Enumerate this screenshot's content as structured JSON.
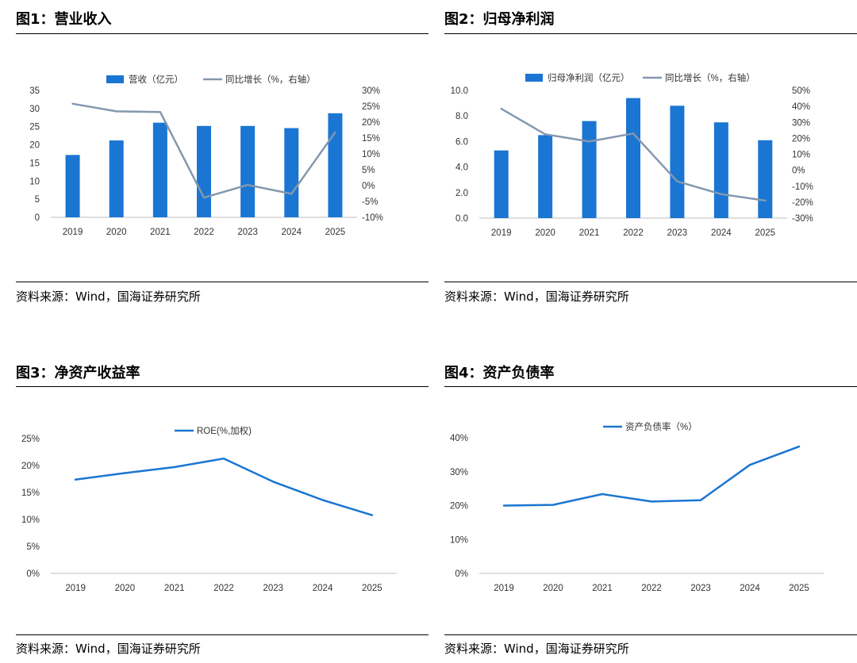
{
  "panels": [
    {
      "title": "图1：营业收入",
      "source": "资料来源：Wind，国海证券研究所",
      "chart_data": {
        "type": "bar",
        "categories": [
          "2019",
          "2020",
          "2021",
          "2022",
          "2023",
          "2024",
          "2025"
        ],
        "series": [
          {
            "name": "营收（亿元）",
            "type": "bar",
            "axis": "left",
            "color": "#1a76d2",
            "values": [
              17.2,
              21.2,
              26.1,
              25.2,
              25.2,
              24.6,
              28.7
            ]
          },
          {
            "name": "同比增长（%，右轴）",
            "type": "line",
            "axis": "right",
            "color": "#8497b0",
            "values": [
              25.8,
              23.4,
              23.2,
              -3.8,
              0.2,
              -2.6,
              16.8
            ]
          }
        ],
        "left_axis": {
          "min": 0,
          "max": 35,
          "step": 5,
          "ticks": [
            "0",
            "5",
            "10",
            "15",
            "20",
            "25",
            "30",
            "35"
          ]
        },
        "right_axis": {
          "min": -10,
          "max": 30,
          "step": 5,
          "ticks": [
            "-10%",
            "-5%",
            "0%",
            "5%",
            "10%",
            "15%",
            "20%",
            "25%",
            "30%"
          ]
        },
        "legend": "top"
      }
    },
    {
      "title": "图2：归母净利润",
      "source": "资料来源：Wind，国海证券研究所",
      "chart_data": {
        "type": "bar",
        "categories": [
          "2019",
          "2020",
          "2021",
          "2022",
          "2023",
          "2024",
          "2025"
        ],
        "series": [
          {
            "name": "归母净利润（亿元）",
            "type": "bar",
            "axis": "left",
            "color": "#1a76d2",
            "values": [
              5.3,
              6.5,
              7.6,
              9.4,
              8.8,
              7.5,
              6.1
            ]
          },
          {
            "name": "同比增长（%，右轴）",
            "type": "line",
            "axis": "right",
            "color": "#8497b0",
            "values": [
              38.5,
              22.5,
              18.0,
              23.0,
              -7.0,
              -15.0,
              -19.0
            ]
          }
        ],
        "left_axis": {
          "min": 0,
          "max": 10,
          "step": 2,
          "ticks": [
            "0.0",
            "2.0",
            "4.0",
            "6.0",
            "8.0",
            "10.0"
          ]
        },
        "right_axis": {
          "min": -30,
          "max": 50,
          "step": 10,
          "ticks": [
            "-30%",
            "-20%",
            "-10%",
            "0%",
            "10%",
            "20%",
            "30%",
            "40%",
            "50%"
          ]
        },
        "legend": "top"
      }
    },
    {
      "title": "图3：净资产收益率",
      "source": "资料来源：Wind，国海证券研究所",
      "chart_data": {
        "type": "line",
        "categories": [
          "2019",
          "2020",
          "2021",
          "2022",
          "2023",
          "2024",
          "2025"
        ],
        "series": [
          {
            "name": "ROE(%,加权)",
            "type": "line",
            "axis": "left",
            "color": "#1a76d2",
            "values": [
              17.4,
              18.6,
              19.7,
              21.3,
              17.0,
              13.6,
              10.8
            ]
          }
        ],
        "left_axis": {
          "min": 0,
          "max": 25,
          "step": 5,
          "ticks": [
            "0%",
            "5%",
            "10%",
            "15%",
            "20%",
            "25%"
          ]
        },
        "legend": "top"
      }
    },
    {
      "title": "图4：资产负债率",
      "source": "资料来源：Wind，国海证券研究所",
      "chart_data": {
        "type": "line",
        "categories": [
          "2019",
          "2020",
          "2021",
          "2022",
          "2023",
          "2024",
          "2025"
        ],
        "series": [
          {
            "name": "资产负债率（%）",
            "type": "line",
            "axis": "left",
            "color": "#1a76d2",
            "values": [
              20.0,
              20.2,
              23.4,
              21.2,
              21.6,
              32.0,
              37.4
            ]
          }
        ],
        "left_axis": {
          "min": 0,
          "max": 40,
          "step": 10,
          "ticks": [
            "0%",
            "10%",
            "20%",
            "30%",
            "40%"
          ]
        },
        "legend": "top"
      }
    }
  ]
}
